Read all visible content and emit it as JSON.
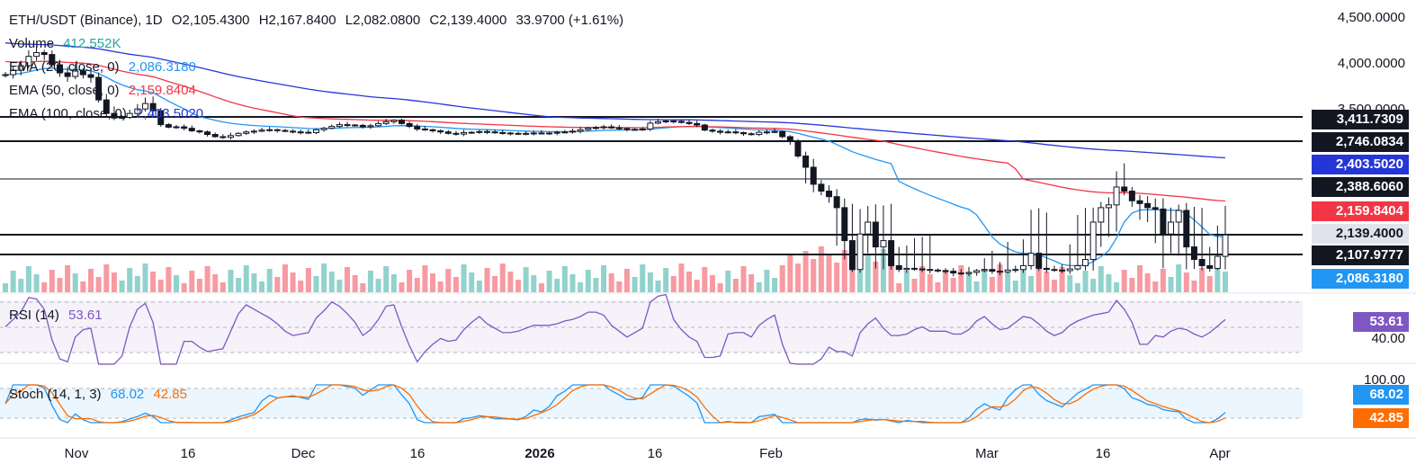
{
  "header": {
    "symbol": "ETH/USDT (Binance), 1D",
    "open": "O2,105.4300",
    "high": "H2,167.8400",
    "low": "L2,082.0800",
    "close": "C2,139.4000",
    "change": "33.9700 (+1.61%)"
  },
  "indicators": {
    "volume": {
      "label": "Volume",
      "value": "412.552K"
    },
    "ema20": {
      "label": "EMA (20, close, 0)",
      "value": "2,086.3180"
    },
    "ema50": {
      "label": "EMA (50, close, 0)",
      "value": "2,159.8404"
    },
    "ema100": {
      "label": "EMA (100, close, 0)",
      "value": "2,403.5020"
    }
  },
  "rsi": {
    "label": "RSI (14)",
    "value": "53.61",
    "tag": "53.61",
    "level": "40.00"
  },
  "stoch": {
    "label": "Stoch (14, 1, 3)",
    "k": "68.02",
    "d": "42.85",
    "level": "100.00"
  },
  "price_axis": {
    "ticks": [
      "4,500.0000",
      "4,000.0000",
      "3,500.0000"
    ],
    "tags": [
      {
        "text": "3,411.7309",
        "bg": "#131722",
        "fg": "#ffffff"
      },
      {
        "text": "2,746.0834",
        "bg": "#131722",
        "fg": "#ffffff"
      },
      {
        "text": "2,403.5020",
        "bg": "#2536d8",
        "fg": "#ffffff"
      },
      {
        "text": "2,388.6060",
        "bg": "#131722",
        "fg": "#ffffff"
      },
      {
        "text": "2,159.8404",
        "bg": "#f23645",
        "fg": "#ffffff"
      },
      {
        "text": "2,139.4000",
        "bg": "#e0e3eb",
        "fg": "#131722"
      },
      {
        "text": "2,107.9777",
        "bg": "#131722",
        "fg": "#ffffff"
      },
      {
        "text": "2,086.3180",
        "bg": "#2196f3",
        "fg": "#ffffff"
      }
    ]
  },
  "stoch_tags": [
    {
      "text": "68.02",
      "bg": "#2196f3",
      "fg": "#ffffff"
    },
    {
      "text": "42.85",
      "bg": "#ff6d00",
      "fg": "#ffffff"
    }
  ],
  "time_axis": [
    "Nov",
    "16",
    "Dec",
    "16",
    "2026",
    "16",
    "Feb",
    "Mar",
    "16",
    "Apr"
  ],
  "colors": {
    "up": "#26a69a",
    "down": "#f23645",
    "candle": "#131722",
    "ema20": "#2196f3",
    "ema50": "#f23645",
    "ema100": "#2536d8",
    "rsi": "#7e57c2",
    "stoch_k": "#2196f3",
    "stoch_d": "#ff6d00"
  },
  "horizontal_levels": [
    3411.7309,
    2746.0834,
    2388.606,
    2107.9777
  ]
}
